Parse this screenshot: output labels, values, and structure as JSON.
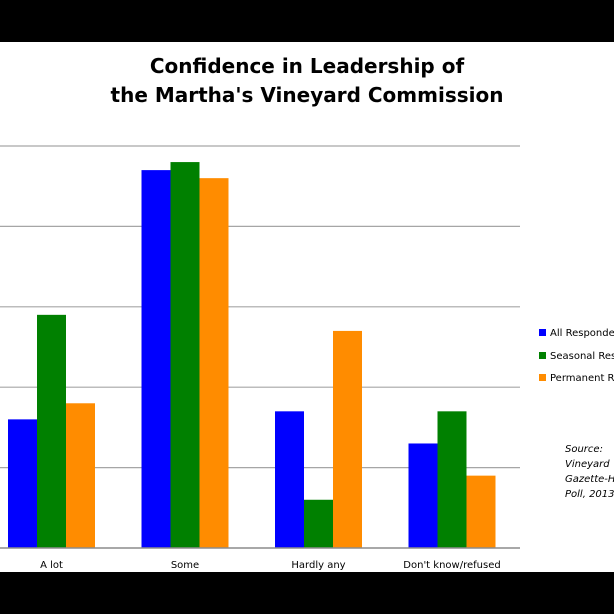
{
  "chart_data": {
    "type": "bar",
    "title": "Confidence in Leadership of the Martha's Vineyard Commission",
    "title_lines": [
      "Confidence in Leadership of",
      "the Martha's Vineyard Commission"
    ],
    "categories": [
      "A lot",
      "Some",
      "Hardly any",
      "Don't know/refused"
    ],
    "series": [
      {
        "name": "All Respondents",
        "color": "#0000ff",
        "values": [
          16,
          47,
          17,
          13
        ]
      },
      {
        "name": "Seasonal Residents",
        "color": "#008000",
        "values": [
          29,
          48,
          6,
          17
        ]
      },
      {
        "name": "Permanent Residents",
        "color": "#ff8c00",
        "values": [
          18,
          46,
          27,
          9
        ]
      }
    ],
    "legend_labels": [
      "All Respondents",
      "Seasonal Resi",
      "Permanent Re"
    ],
    "ylim": [
      0,
      50
    ],
    "y_gridlines": [
      10,
      20,
      30,
      40,
      50
    ],
    "grid": true,
    "legend_position": "right",
    "xlabel": "",
    "ylabel": "",
    "source_note": "Source:\nVineyard\nGazette-H\nPoll, 2013"
  }
}
